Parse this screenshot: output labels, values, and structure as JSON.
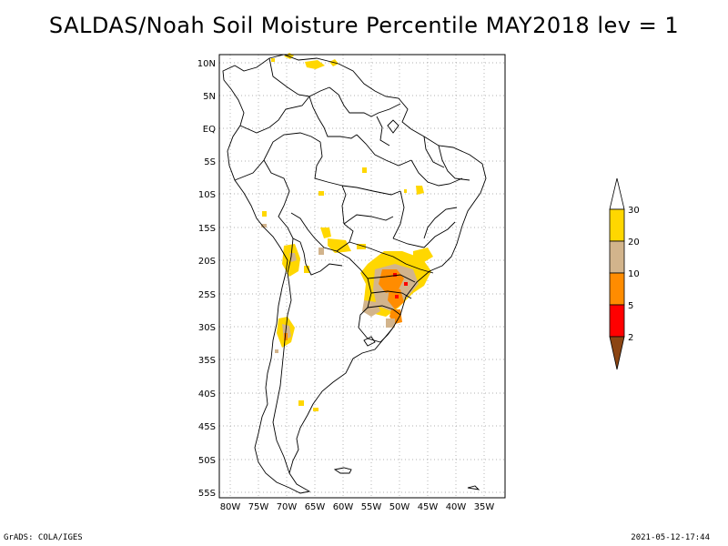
{
  "title": "SALDAS/Noah Soil Moisture Percentile MAY2018 lev = 1",
  "footer": {
    "left": "GrADS: COLA/IGES",
    "right": "2021-05-12-17:44"
  },
  "map": {
    "lon_range": [
      -81,
      -31
    ],
    "lat_range": [
      -56,
      12
    ],
    "lon_ticks": [
      "80W",
      "75W",
      "70W",
      "65W",
      "60W",
      "55W",
      "50W",
      "45W",
      "40W",
      "35W"
    ],
    "lat_ticks": [
      "10N",
      "5N",
      "EQ",
      "5S",
      "10S",
      "15S",
      "20S",
      "25S",
      "30S",
      "35S",
      "40S",
      "45S",
      "50S",
      "55S"
    ],
    "grid": "dotted"
  },
  "legend": {
    "labels": [
      "2",
      "5",
      "10",
      "20",
      "30"
    ],
    "colors": {
      "below_2": "#8b4513",
      "2_5": "#ff0000",
      "5_10": "#ff8c00",
      "10_20": "#d2b48c",
      "20_30": "#ffd700",
      "above_30": "#ffffff"
    }
  }
}
